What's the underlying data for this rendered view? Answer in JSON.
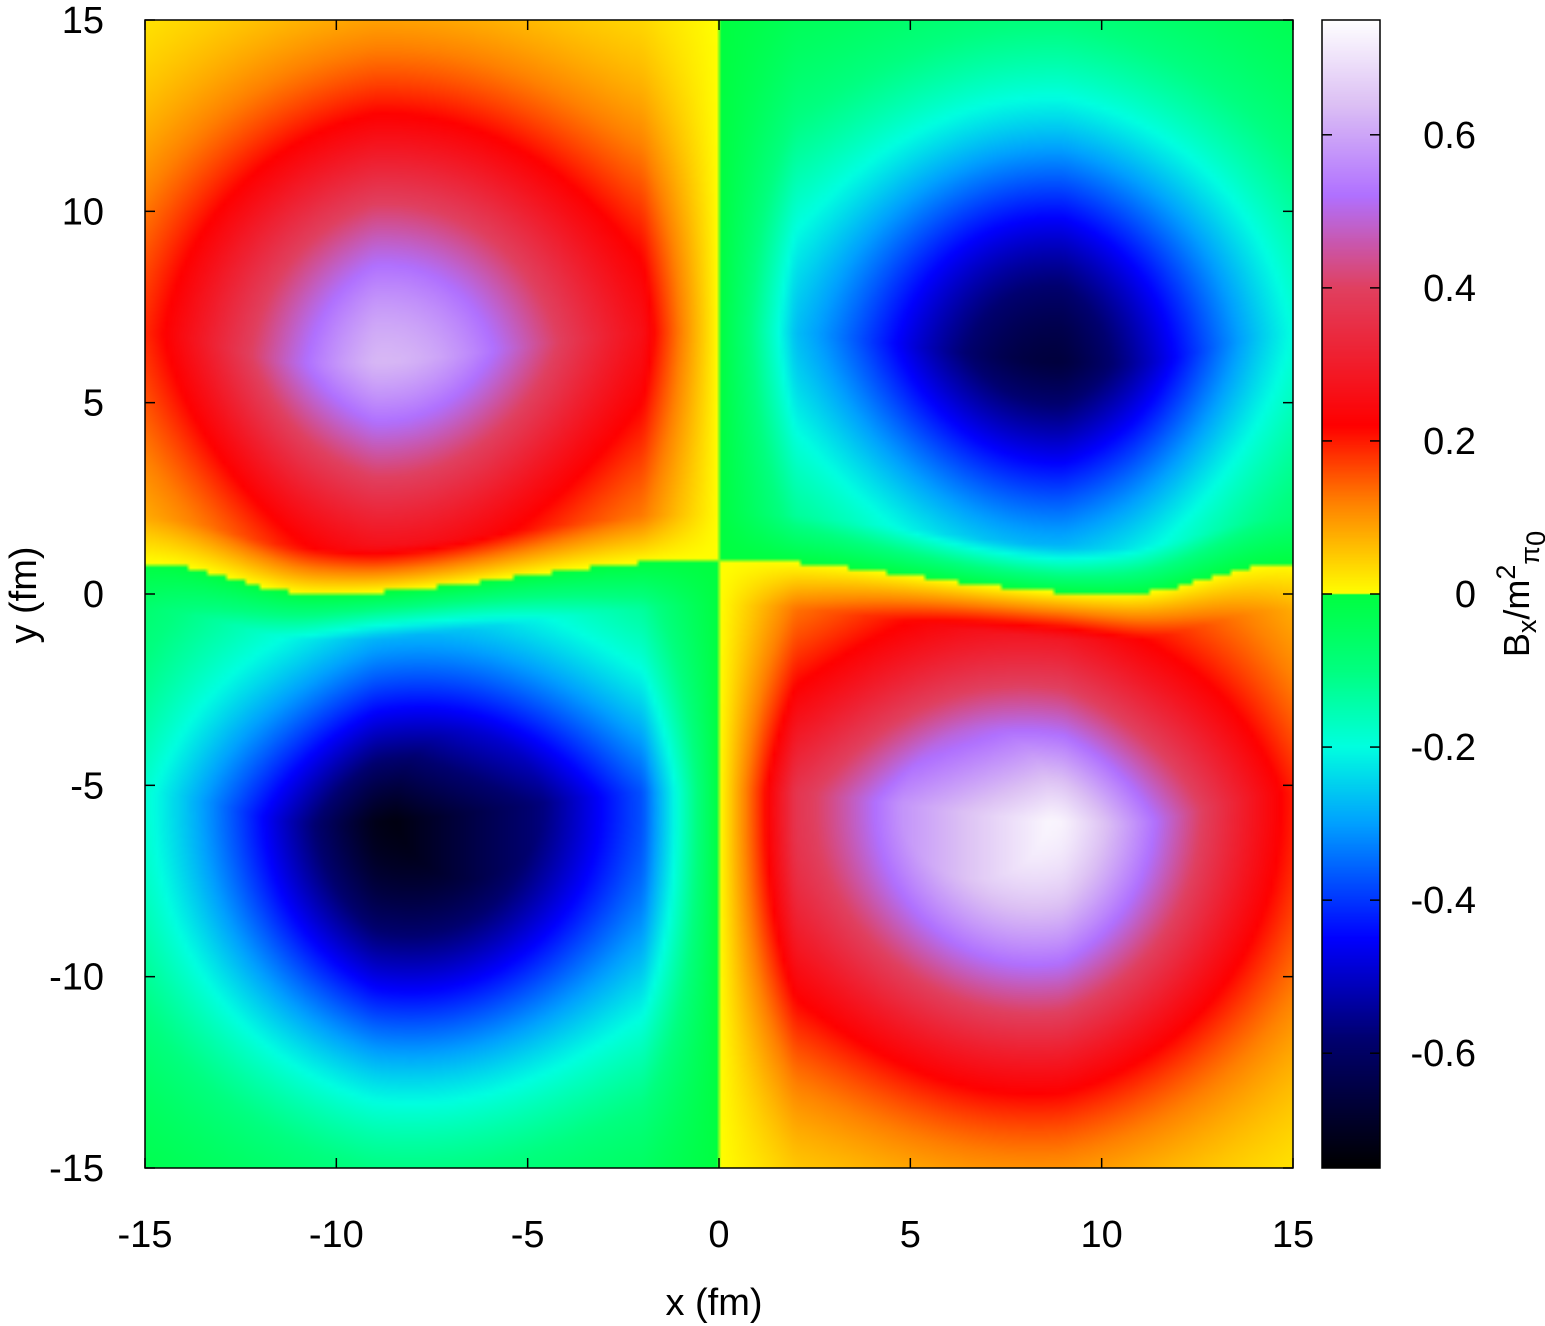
{
  "chart_data": {
    "type": "heatmap",
    "title": "",
    "xlabel": "x (fm)",
    "ylabel": "y (fm)",
    "xlim": [
      -15,
      15
    ],
    "ylim": [
      -15,
      15
    ],
    "x_ticks": [
      "-15",
      "-10",
      "-5",
      "0",
      "5",
      "10",
      "15"
    ],
    "y_ticks": [
      "-15",
      "-10",
      "-5",
      "0",
      "5",
      "10",
      "15"
    ],
    "x_tick_values": [
      -15,
      -10,
      -5,
      0,
      5,
      10,
      15
    ],
    "y_tick_values": [
      -15,
      -10,
      -5,
      0,
      5,
      10,
      15
    ],
    "colorbar": {
      "label_main": "B",
      "label_sub1": "x",
      "label_mid": "/m",
      "label_sup": "2",
      "label_sub2": "π",
      "label_sub3": "0",
      "range": [
        -0.75,
        0.75
      ],
      "ticks": [
        "-0.6",
        "-0.4",
        "-0.2",
        "0",
        "0.2",
        "0.4",
        "0.6"
      ],
      "tick_values": [
        -0.6,
        -0.4,
        -0.2,
        0,
        0.2,
        0.4,
        0.6
      ],
      "palette": {
        "negative": [
          {
            "v": -0.75,
            "color": "#000000"
          },
          {
            "v": -0.58,
            "color": "#000070"
          },
          {
            "v": -0.45,
            "color": "#0000ff"
          },
          {
            "v": -0.3,
            "color": "#00a0ff"
          },
          {
            "v": -0.2,
            "color": "#00ffe0"
          },
          {
            "v": -0.1,
            "color": "#00ff80"
          },
          {
            "v": 0.0,
            "color": "#00ff40"
          }
        ],
        "positive": [
          {
            "v": 0.0,
            "color": "#ffff00"
          },
          {
            "v": 0.12,
            "color": "#ff8000"
          },
          {
            "v": 0.22,
            "color": "#ff0000"
          },
          {
            "v": 0.4,
            "color": "#e04060"
          },
          {
            "v": 0.52,
            "color": "#b070ff"
          },
          {
            "v": 0.64,
            "color": "#dcc0f4"
          },
          {
            "v": 0.75,
            "color": "#ffffff"
          }
        ]
      }
    },
    "field_model": {
      "lobes": [
        {
          "x": -7.5,
          "y": 6.0,
          "amp": 0.62
        },
        {
          "x": 7.5,
          "y": 6.0,
          "amp": -0.65
        },
        {
          "x": -6.8,
          "y": -6.0,
          "amp": -0.75
        },
        {
          "x": 7.0,
          "y": -6.0,
          "amp": 0.75
        }
      ],
      "sign_rule": "sign(x)*sign(y-boundary(x))",
      "boundary_peak": 0.9,
      "boundary_edge": 0.8,
      "boundary_min_x": 10.5
    }
  }
}
